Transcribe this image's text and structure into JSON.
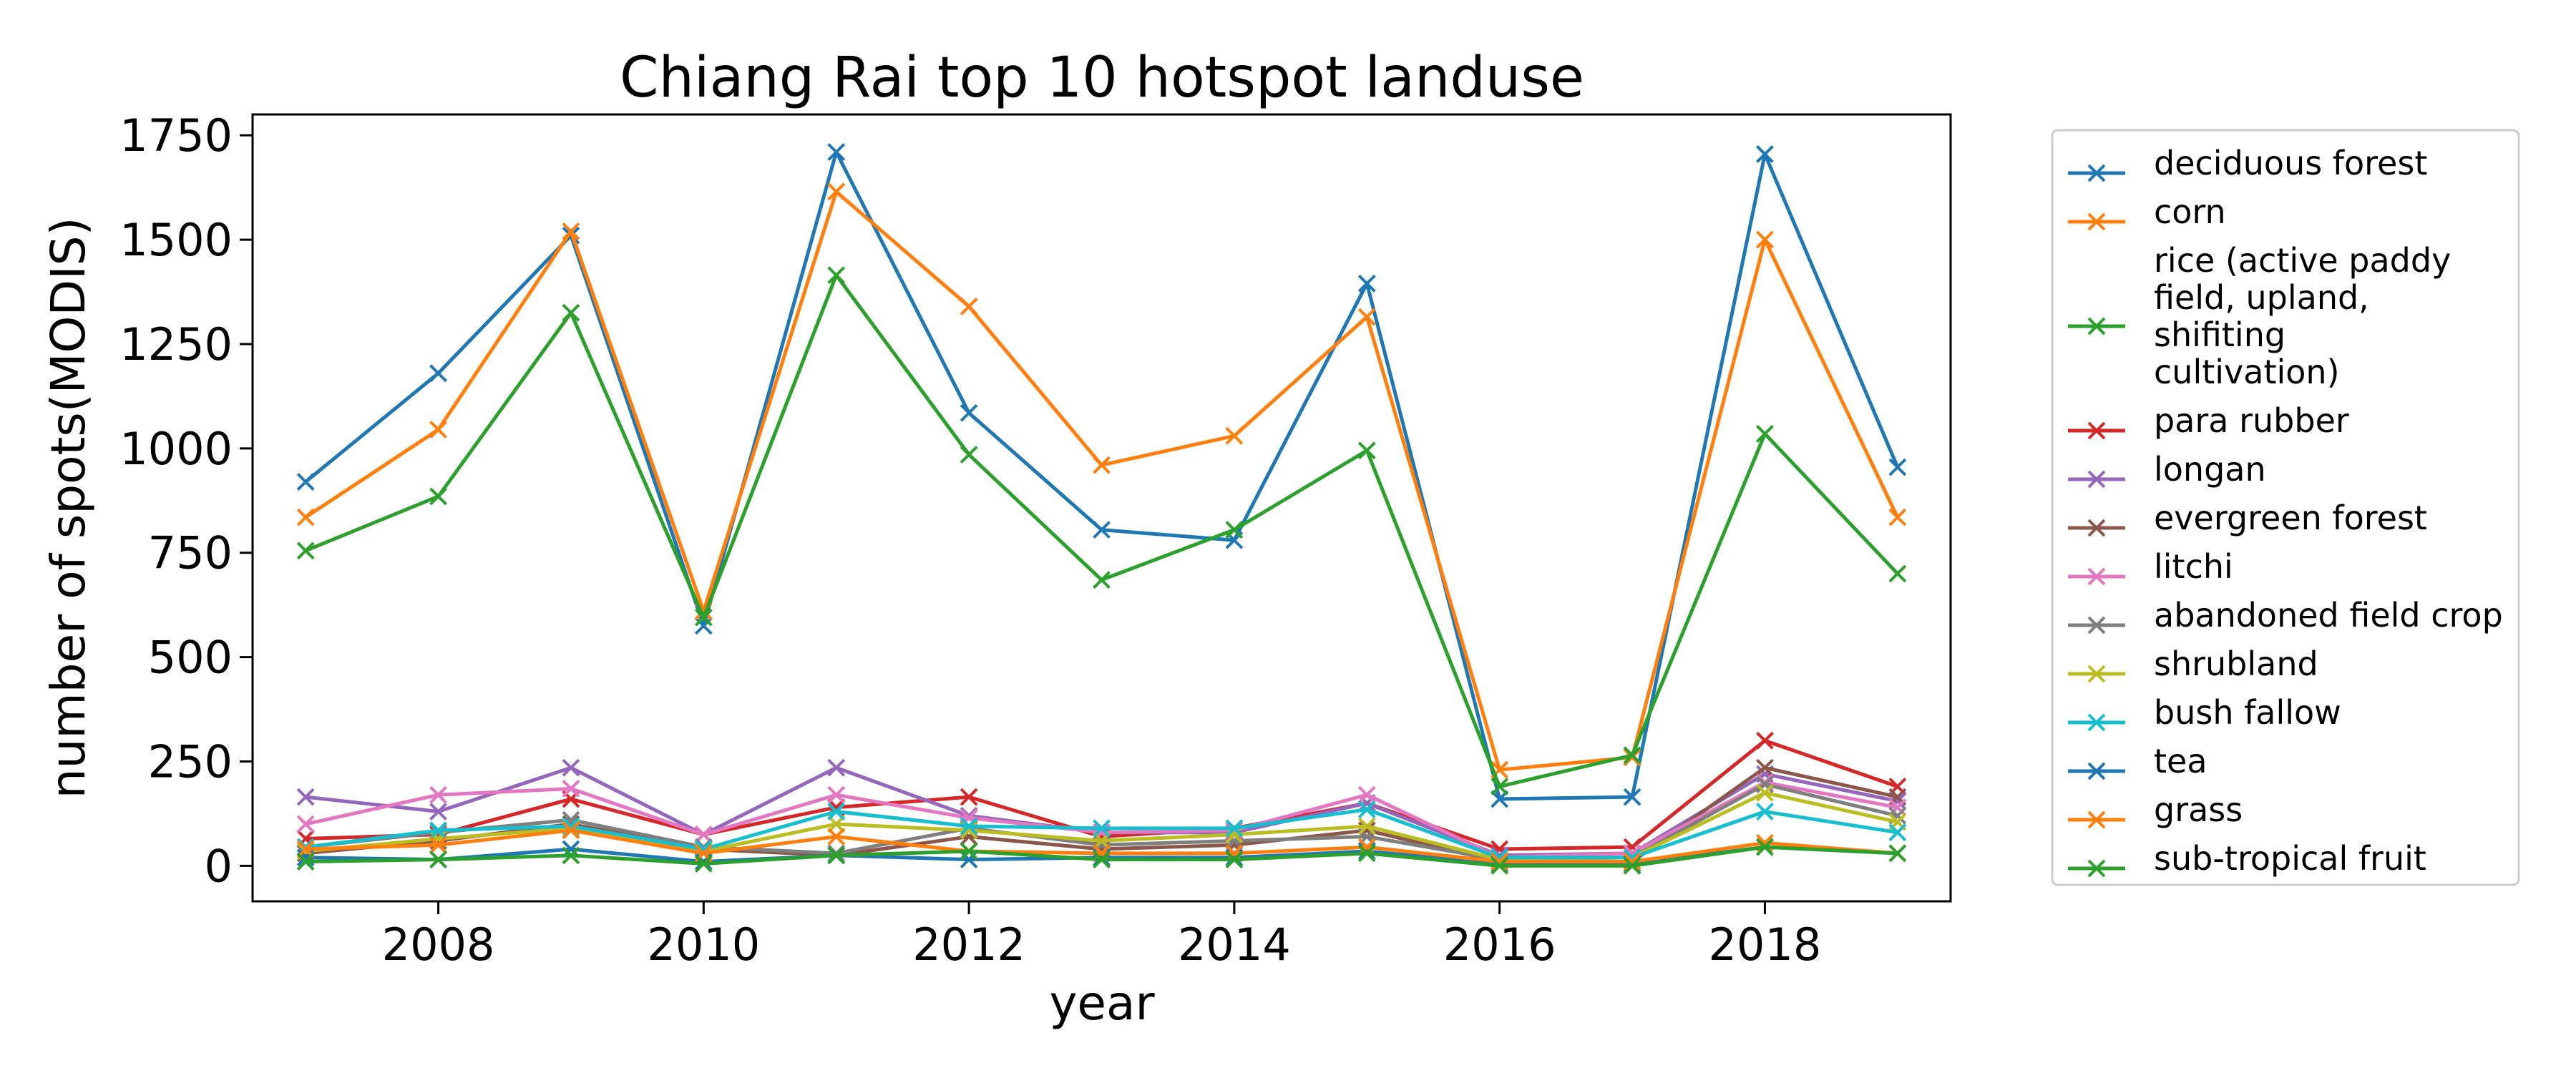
{
  "chart_data": {
    "type": "line",
    "title": "Chiang Rai top 10 hotspot landuse",
    "xlabel": "year",
    "ylabel": "number of spots(MODIS)",
    "xlim": [
      2006.6,
      2019.4
    ],
    "ylim": [
      -85,
      1800
    ],
    "xticks": [
      2008,
      2010,
      2012,
      2014,
      2016,
      2018
    ],
    "yticks": [
      0,
      250,
      500,
      750,
      1000,
      1250,
      1500,
      1750
    ],
    "grid": false,
    "legend_position": "outside-right",
    "marker": "x",
    "x": [
      2007,
      2008,
      2009,
      2010,
      2011,
      2012,
      2013,
      2014,
      2015,
      2016,
      2017,
      2018,
      2019
    ],
    "series": [
      {
        "name": "deciduous forest",
        "color": "#1f77b4",
        "values": [
          920,
          1180,
          1510,
          575,
          1710,
          1085,
          805,
          780,
          1395,
          160,
          165,
          1705,
          955
        ]
      },
      {
        "name": "corn",
        "color": "#ff7f0e",
        "values": [
          835,
          1045,
          1520,
          610,
          1615,
          1340,
          960,
          1030,
          1315,
          230,
          260,
          1500,
          835
        ]
      },
      {
        "name": "rice (active paddy field, upland, shifiting cultivation)",
        "color": "#2ca02c",
        "values": [
          755,
          885,
          1325,
          595,
          1415,
          985,
          685,
          805,
          995,
          190,
          265,
          1035,
          700
        ]
      },
      {
        "name": "para rubber",
        "color": "#d62728",
        "values": [
          65,
          75,
          160,
          75,
          140,
          165,
          70,
          90,
          150,
          40,
          45,
          300,
          190
        ]
      },
      {
        "name": "longan",
        "color": "#9467bd",
        "values": [
          165,
          130,
          235,
          75,
          235,
          120,
          80,
          80,
          150,
          25,
          30,
          220,
          155
        ]
      },
      {
        "name": "evergreen forest",
        "color": "#8c564b",
        "values": [
          30,
          60,
          100,
          40,
          25,
          70,
          40,
          50,
          85,
          10,
          10,
          235,
          165
        ]
      },
      {
        "name": "litchi",
        "color": "#e377c2",
        "values": [
          100,
          170,
          185,
          75,
          170,
          115,
          80,
          85,
          170,
          20,
          30,
          200,
          140
        ]
      },
      {
        "name": "abandoned field crop",
        "color": "#7f7f7f",
        "values": [
          45,
          80,
          110,
          45,
          30,
          90,
          50,
          60,
          70,
          15,
          20,
          195,
          120
        ]
      },
      {
        "name": "shrubland",
        "color": "#bcbd22",
        "values": [
          35,
          65,
          90,
          35,
          100,
          85,
          60,
          75,
          95,
          15,
          20,
          175,
          105
        ]
      },
      {
        "name": "bush fallow",
        "color": "#17becf",
        "values": [
          45,
          85,
          95,
          40,
          130,
          95,
          90,
          90,
          135,
          20,
          20,
          130,
          80
        ]
      },
      {
        "name": "tea",
        "color": "#1f77b4",
        "values": [
          20,
          15,
          40,
          10,
          25,
          15,
          20,
          20,
          35,
          5,
          5,
          45,
          30
        ]
      },
      {
        "name": "grass",
        "color": "#ff7f0e",
        "values": [
          40,
          50,
          85,
          30,
          70,
          35,
          30,
          30,
          45,
          10,
          10,
          55,
          30
        ]
      },
      {
        "name": "sub-tropical fruit",
        "color": "#2ca02c",
        "values": [
          10,
          15,
          25,
          5,
          25,
          35,
          15,
          15,
          30,
          0,
          0,
          45,
          30
        ]
      }
    ]
  },
  "legend_display_lines": {
    "rice (active paddy field, upland, shifiting cultivation)": [
      "rice (active paddy",
      "field, upland,",
      "shifiting",
      "cultivation)"
    ]
  }
}
